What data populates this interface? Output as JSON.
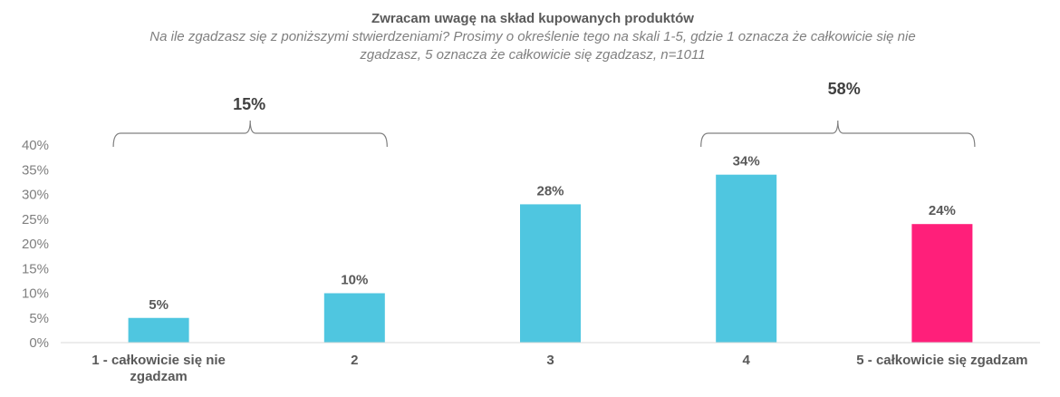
{
  "chart_data": {
    "type": "bar",
    "title": "Zwracam uwagę na skład kupowanych produktów",
    "subtitle_lines": [
      "Na ile zgadzasz się z poniższymi stwierdzeniami? Prosimy o określenie tego na skali 1-5, gdzie 1 oznacza że całkowicie się nie",
      "zgadzasz, 5 oznacza że całkowicie się zgadzasz, n=1011"
    ],
    "categories": [
      [
        "1 - całkowicie się nie",
        "zgadzam"
      ],
      [
        "2"
      ],
      [
        "3"
      ],
      [
        "4"
      ],
      [
        "5 - całkowicie się zgadzam"
      ]
    ],
    "values": [
      0.05,
      0.1,
      0.28,
      0.34,
      0.24
    ],
    "data_labels": [
      "5%",
      "10%",
      "28%",
      "34%",
      "24%"
    ],
    "colors": [
      "#4fc6e0",
      "#4fc6e0",
      "#4fc6e0",
      "#4fc6e0",
      "#ff1f7a"
    ],
    "ylim": [
      0,
      0.4
    ],
    "yticks": [
      0,
      0.05,
      0.1,
      0.15,
      0.2,
      0.25,
      0.3,
      0.35,
      0.4
    ],
    "ytick_labels": [
      "0%",
      "5%",
      "10%",
      "15%",
      "20%",
      "25%",
      "30%",
      "35%",
      "40%"
    ],
    "grid": false,
    "groups": [
      {
        "label": "15%",
        "from_category": 0,
        "to_category": 1
      },
      {
        "label": "58%",
        "from_category": 3,
        "to_category": 4
      }
    ]
  }
}
